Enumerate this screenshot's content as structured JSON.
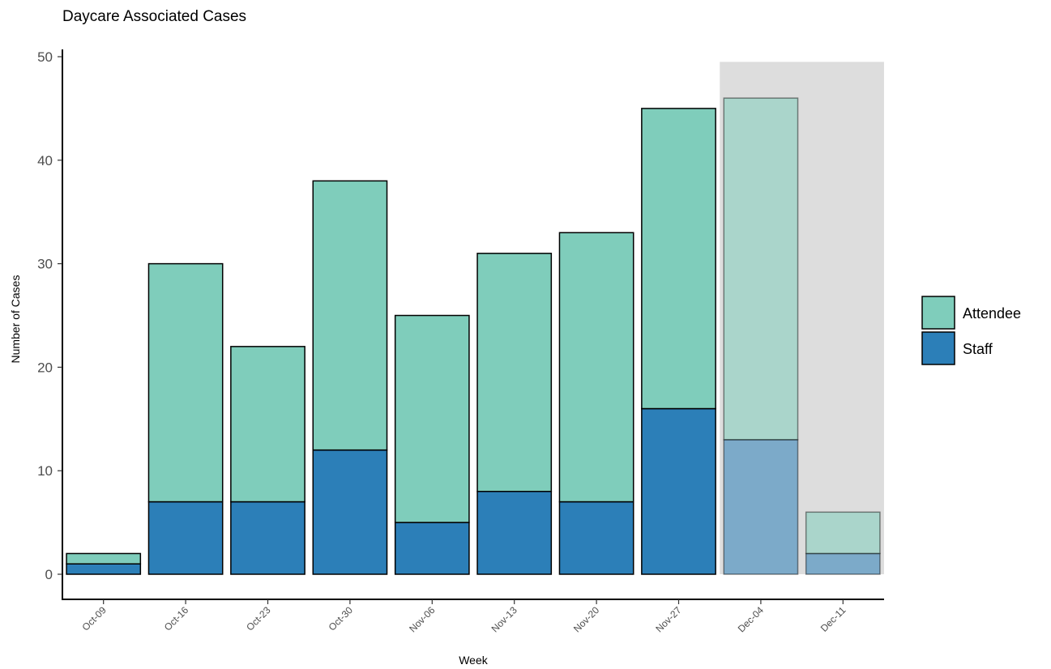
{
  "chart_data": {
    "type": "bar",
    "stacked": true,
    "title": "Daycare Associated Cases",
    "xlabel": "Week",
    "ylabel": "Number of Cases",
    "ylim": [
      0,
      50
    ],
    "yticks": [
      0,
      10,
      20,
      30,
      40,
      50
    ],
    "categories": [
      "Oct-09",
      "Oct-16",
      "Oct-23",
      "Oct-30",
      "Nov-06",
      "Nov-13",
      "Nov-20",
      "Nov-27",
      "Dec-04",
      "Dec-11"
    ],
    "series": [
      {
        "name": "Staff",
        "color": "#2c7fb8",
        "values": [
          1,
          7,
          7,
          12,
          5,
          8,
          7,
          16,
          13,
          2
        ]
      },
      {
        "name": "Attendee",
        "color": "#7fcdbb",
        "values": [
          1,
          23,
          15,
          26,
          20,
          23,
          26,
          29,
          33,
          4
        ]
      }
    ],
    "shaded_categories": [
      "Dec-04",
      "Dec-11"
    ],
    "shade_color": "#dddddd",
    "legend_order": [
      "Attendee",
      "Staff"
    ],
    "legend_position": "right",
    "grid": false
  }
}
